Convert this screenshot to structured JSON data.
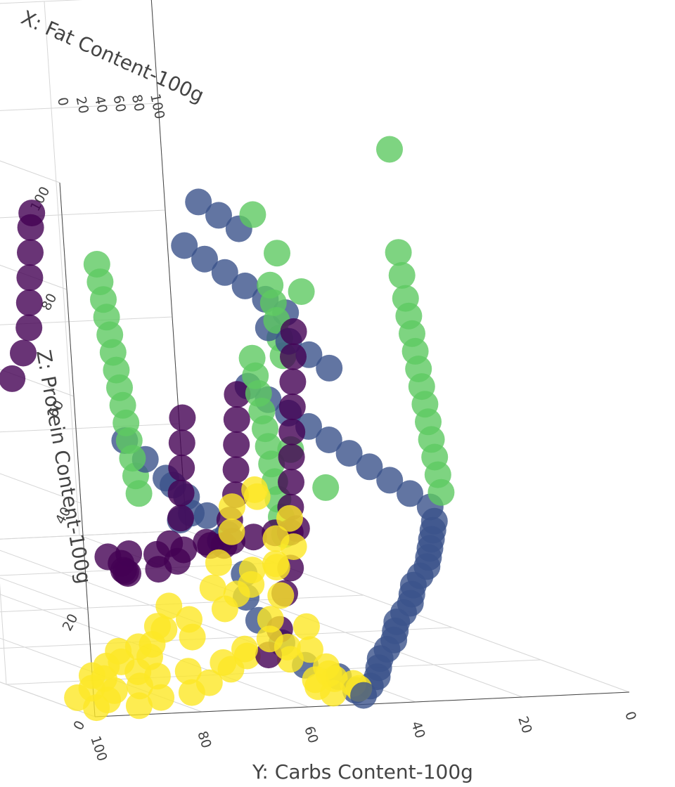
{
  "chart_data": {
    "type": "scatter",
    "subtype": "3d-scatter",
    "title": "",
    "xlabel": "X: Fat Content-100g",
    "ylabel": "Y: Carbs Content-100g",
    "zlabel": "Z: Protein Content-100g",
    "xlim": [
      0,
      100
    ],
    "ylim": [
      0,
      100
    ],
    "zlim": [
      0,
      100
    ],
    "x_ticks": [
      "0",
      "20",
      "40",
      "60",
      "80",
      "100"
    ],
    "y_ticks": [
      "100",
      "80",
      "60",
      "40",
      "20",
      "0"
    ],
    "z_ticks": [
      "100",
      "80",
      "60",
      "40",
      "20",
      "0"
    ],
    "grid": true,
    "legend": "none",
    "colorscale": "viridis",
    "series": [
      {
        "color": "#fde725",
        "points": [
          [
            2,
            98,
            1
          ],
          [
            3,
            95,
            2
          ],
          [
            5,
            92,
            3
          ],
          [
            2,
            90,
            1
          ],
          [
            4,
            88,
            4
          ],
          [
            3,
            85,
            2
          ],
          [
            6,
            83,
            5
          ],
          [
            2,
            80,
            3
          ],
          [
            5,
            78,
            6
          ],
          [
            4,
            75,
            4
          ],
          [
            3,
            73,
            8
          ],
          [
            5,
            70,
            6
          ],
          [
            4,
            68,
            10
          ],
          [
            6,
            66,
            8
          ],
          [
            3,
            64,
            12
          ],
          [
            5,
            62,
            15
          ],
          [
            4,
            60,
            10
          ],
          [
            6,
            58,
            7
          ],
          [
            3,
            56,
            4
          ],
          [
            5,
            54,
            2
          ],
          [
            4,
            52,
            1
          ],
          [
            6,
            50,
            3
          ],
          [
            3,
            48,
            2
          ],
          [
            5,
            96,
            6
          ],
          [
            4,
            94,
            8
          ],
          [
            6,
            90,
            10
          ],
          [
            3,
            86,
            12
          ],
          [
            5,
            82,
            14
          ],
          [
            4,
            78,
            16
          ],
          [
            6,
            76,
            12
          ],
          [
            3,
            72,
            18
          ],
          [
            5,
            68,
            20
          ],
          [
            4,
            66,
            22
          ],
          [
            6,
            64,
            24
          ],
          [
            3,
            62,
            26
          ],
          [
            5,
            60,
            30
          ],
          [
            4,
            58,
            34
          ],
          [
            6,
            56,
            28
          ],
          [
            3,
            92,
            9
          ],
          [
            5,
            87,
            11
          ],
          [
            4,
            84,
            15
          ],
          [
            6,
            80,
            18
          ],
          [
            3,
            74,
            22
          ],
          [
            5,
            71,
            26
          ],
          [
            4,
            69,
            32
          ],
          [
            6,
            67,
            36
          ],
          [
            3,
            65,
            40
          ],
          [
            5,
            63,
            38
          ],
          [
            4,
            61,
            25
          ],
          [
            6,
            59,
            19
          ],
          [
            3,
            57,
            14
          ],
          [
            5,
            55,
            9
          ],
          [
            4,
            53,
            6
          ],
          [
            6,
            51,
            4
          ],
          [
            3,
            49,
            3
          ],
          [
            5,
            99,
            2
          ],
          [
            4,
            97,
            4
          ],
          [
            6,
            93,
            5
          ],
          [
            3,
            89,
            7
          ],
          [
            5,
            85,
            9
          ]
        ]
      },
      {
        "color": "#440154",
        "points": [
          [
            6,
            62,
            8
          ],
          [
            8,
            58,
            12
          ],
          [
            10,
            55,
            18
          ],
          [
            12,
            52,
            22
          ],
          [
            14,
            50,
            28
          ],
          [
            16,
            48,
            32
          ],
          [
            18,
            46,
            36
          ],
          [
            20,
            44,
            40
          ],
          [
            22,
            42,
            44
          ],
          [
            24,
            40,
            48
          ],
          [
            26,
            38,
            52
          ],
          [
            28,
            36,
            56
          ],
          [
            30,
            34,
            60
          ],
          [
            32,
            48,
            20
          ],
          [
            34,
            45,
            24
          ],
          [
            36,
            42,
            28
          ],
          [
            38,
            40,
            32
          ],
          [
            40,
            38,
            36
          ],
          [
            42,
            36,
            40
          ],
          [
            44,
            34,
            44
          ],
          [
            46,
            40,
            16
          ],
          [
            48,
            44,
            12
          ],
          [
            50,
            46,
            10
          ],
          [
            52,
            42,
            14
          ],
          [
            54,
            38,
            18
          ],
          [
            56,
            36,
            22
          ],
          [
            58,
            34,
            26
          ],
          [
            60,
            32,
            30
          ],
          [
            62,
            30,
            34
          ],
          [
            64,
            44,
            8
          ],
          [
            66,
            40,
            6
          ],
          [
            68,
            38,
            4
          ],
          [
            70,
            36,
            3
          ],
          [
            72,
            34,
            2
          ],
          [
            74,
            32,
            5
          ],
          [
            76,
            50,
            38
          ],
          [
            78,
            46,
            42
          ],
          [
            80,
            43,
            46
          ],
          [
            82,
            41,
            50
          ],
          [
            84,
            39,
            54
          ],
          [
            86,
            37,
            58
          ],
          [
            88,
            35,
            62
          ],
          [
            90,
            33,
            64
          ],
          [
            10,
            52,
            30
          ],
          [
            20,
            48,
            26
          ],
          [
            30,
            44,
            22
          ],
          [
            40,
            40,
            18
          ],
          [
            50,
            36,
            14
          ],
          [
            60,
            33,
            10
          ],
          [
            70,
            30,
            6
          ]
        ]
      },
      {
        "color": "#5ec962",
        "points": [
          [
            10,
            30,
            100
          ],
          [
            12,
            28,
            80
          ],
          [
            14,
            26,
            75
          ],
          [
            16,
            24,
            70
          ],
          [
            18,
            22,
            66
          ],
          [
            20,
            20,
            62
          ],
          [
            22,
            18,
            58
          ],
          [
            24,
            16,
            54
          ],
          [
            26,
            14,
            50
          ],
          [
            28,
            12,
            46
          ],
          [
            30,
            10,
            42
          ],
          [
            32,
            8,
            38
          ],
          [
            34,
            6,
            34
          ],
          [
            36,
            4,
            30
          ],
          [
            38,
            2,
            26
          ],
          [
            40,
            34,
            52
          ],
          [
            42,
            32,
            48
          ],
          [
            44,
            30,
            44
          ],
          [
            46,
            28,
            40
          ],
          [
            48,
            26,
            36
          ],
          [
            50,
            24,
            32
          ],
          [
            52,
            22,
            28
          ],
          [
            54,
            20,
            24
          ],
          [
            56,
            18,
            20
          ],
          [
            58,
            16,
            16
          ],
          [
            60,
            14,
            12
          ],
          [
            62,
            12,
            58
          ],
          [
            64,
            10,
            54
          ],
          [
            66,
            8,
            50
          ],
          [
            68,
            6,
            46
          ],
          [
            70,
            4,
            42
          ],
          [
            72,
            36,
            60
          ],
          [
            74,
            34,
            56
          ],
          [
            76,
            32,
            52
          ],
          [
            78,
            30,
            48
          ],
          [
            80,
            28,
            44
          ],
          [
            82,
            26,
            40
          ],
          [
            84,
            24,
            36
          ],
          [
            86,
            22,
            32
          ],
          [
            88,
            20,
            28
          ],
          [
            90,
            18,
            24
          ],
          [
            92,
            16,
            20
          ],
          [
            94,
            14,
            16
          ],
          [
            96,
            12,
            12
          ],
          [
            98,
            10,
            8
          ],
          [
            20,
            38,
            34
          ],
          [
            30,
            36,
            38
          ],
          [
            40,
            24,
            64
          ],
          [
            50,
            20,
            68
          ],
          [
            60,
            16,
            72
          ]
        ]
      },
      {
        "color": "#3b528b",
        "points": [
          [
            2,
            48,
            1
          ],
          [
            4,
            45,
            2
          ],
          [
            6,
            42,
            3
          ],
          [
            8,
            40,
            4
          ],
          [
            10,
            38,
            5
          ],
          [
            12,
            35,
            6
          ],
          [
            14,
            32,
            7
          ],
          [
            16,
            30,
            8
          ],
          [
            18,
            28,
            9
          ],
          [
            20,
            25,
            10
          ],
          [
            22,
            22,
            11
          ],
          [
            24,
            20,
            12
          ],
          [
            26,
            18,
            13
          ],
          [
            28,
            15,
            14
          ],
          [
            30,
            12,
            15
          ],
          [
            32,
            10,
            16
          ],
          [
            34,
            8,
            17
          ],
          [
            36,
            6,
            18
          ],
          [
            38,
            4,
            19
          ],
          [
            40,
            2,
            20
          ],
          [
            42,
            1,
            22
          ],
          [
            44,
            3,
            24
          ],
          [
            46,
            5,
            26
          ],
          [
            48,
            7,
            28
          ],
          [
            50,
            9,
            30
          ],
          [
            52,
            11,
            32
          ],
          [
            54,
            13,
            34
          ],
          [
            56,
            15,
            36
          ],
          [
            58,
            17,
            38
          ],
          [
            60,
            19,
            40
          ],
          [
            62,
            2,
            42
          ],
          [
            64,
            4,
            44
          ],
          [
            66,
            6,
            46
          ],
          [
            68,
            8,
            48
          ],
          [
            70,
            3,
            50
          ],
          [
            72,
            5,
            52
          ],
          [
            74,
            7,
            54
          ],
          [
            76,
            9,
            56
          ],
          [
            78,
            11,
            58
          ],
          [
            80,
            13,
            60
          ],
          [
            82,
            1,
            62
          ],
          [
            84,
            3,
            64
          ],
          [
            86,
            5,
            66
          ],
          [
            88,
            2,
            3
          ],
          [
            90,
            4,
            6
          ],
          [
            92,
            6,
            9
          ],
          [
            94,
            8,
            12
          ],
          [
            96,
            10,
            15
          ],
          [
            98,
            12,
            18
          ],
          [
            100,
            1,
            2
          ],
          [
            60,
            22,
            5
          ],
          [
            70,
            18,
            8
          ],
          [
            80,
            15,
            10
          ],
          [
            90,
            10,
            12
          ],
          [
            50,
            30,
            4
          ],
          [
            40,
            36,
            3
          ],
          [
            30,
            40,
            2
          ],
          [
            20,
            44,
            1
          ],
          [
            10,
            46,
            2
          ],
          [
            5,
            47,
            1
          ]
        ]
      }
    ]
  }
}
